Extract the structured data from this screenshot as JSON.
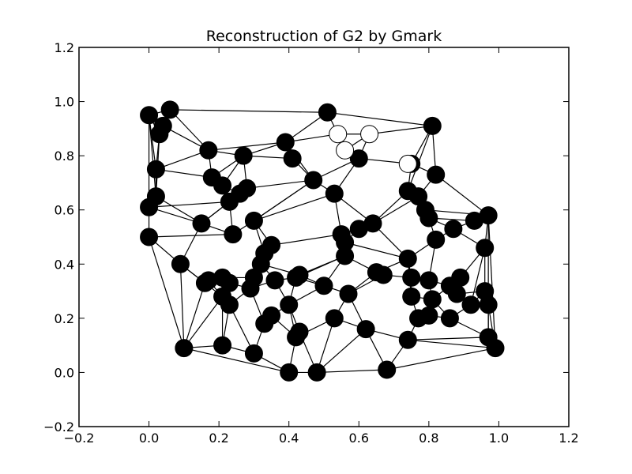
{
  "chart_data": {
    "type": "scatter",
    "title": "Reconstruction of G2 by Gmark",
    "xlabel": "",
    "ylabel": "",
    "xlim": [
      -0.2,
      1.2
    ],
    "ylim": [
      -0.2,
      1.2
    ],
    "xticks": [
      -0.2,
      0.0,
      0.2,
      0.4,
      0.6,
      0.8,
      1.0,
      1.2
    ],
    "yticks": [
      -0.2,
      0.0,
      0.2,
      0.4,
      0.6,
      0.8,
      1.0,
      1.2
    ],
    "xtick_labels": [
      "−0.2",
      "0.0",
      "0.2",
      "0.4",
      "0.6",
      "0.8",
      "1.0",
      "1.2"
    ],
    "ytick_labels": [
      "−0.2",
      "0.0",
      "0.2",
      "0.4",
      "0.6",
      "0.8",
      "1.0",
      "1.2"
    ],
    "grid": false,
    "colors": {
      "node_filled": "#000000",
      "node_hollow": "#ffffff",
      "edge": "#000000"
    },
    "nodes": [
      {
        "x": 0.0,
        "y": 0.95
      },
      {
        "x": 0.06,
        "y": 0.97
      },
      {
        "x": 0.04,
        "y": 0.91
      },
      {
        "x": 0.03,
        "y": 0.88
      },
      {
        "x": 0.51,
        "y": 0.96
      },
      {
        "x": 0.81,
        "y": 0.91
      },
      {
        "x": 0.39,
        "y": 0.85
      },
      {
        "x": 0.17,
        "y": 0.82
      },
      {
        "x": 0.27,
        "y": 0.8
      },
      {
        "x": 0.41,
        "y": 0.79
      },
      {
        "x": 0.6,
        "y": 0.79
      },
      {
        "x": 0.75,
        "y": 0.77
      },
      {
        "x": 0.02,
        "y": 0.75
      },
      {
        "x": 0.18,
        "y": 0.72
      },
      {
        "x": 0.82,
        "y": 0.73
      },
      {
        "x": 0.21,
        "y": 0.69
      },
      {
        "x": 0.47,
        "y": 0.71
      },
      {
        "x": 0.28,
        "y": 0.68
      },
      {
        "x": 0.26,
        "y": 0.66
      },
      {
        "x": 0.53,
        "y": 0.66
      },
      {
        "x": 0.74,
        "y": 0.67
      },
      {
        "x": 0.77,
        "y": 0.65
      },
      {
        "x": 0.02,
        "y": 0.65
      },
      {
        "x": 0.23,
        "y": 0.63
      },
      {
        "x": 0.0,
        "y": 0.61
      },
      {
        "x": 0.79,
        "y": 0.6
      },
      {
        "x": 0.8,
        "y": 0.57
      },
      {
        "x": 0.93,
        "y": 0.56
      },
      {
        "x": 0.97,
        "y": 0.58
      },
      {
        "x": 0.15,
        "y": 0.55
      },
      {
        "x": 0.3,
        "y": 0.56
      },
      {
        "x": 0.64,
        "y": 0.55
      },
      {
        "x": 0.6,
        "y": 0.53
      },
      {
        "x": 0.87,
        "y": 0.53
      },
      {
        "x": 0.0,
        "y": 0.5
      },
      {
        "x": 0.24,
        "y": 0.51
      },
      {
        "x": 0.55,
        "y": 0.51
      },
      {
        "x": 0.56,
        "y": 0.48
      },
      {
        "x": 0.82,
        "y": 0.49
      },
      {
        "x": 0.35,
        "y": 0.47
      },
      {
        "x": 0.33,
        "y": 0.44
      },
      {
        "x": 0.96,
        "y": 0.46
      },
      {
        "x": 0.56,
        "y": 0.43
      },
      {
        "x": 0.74,
        "y": 0.42
      },
      {
        "x": 0.32,
        "y": 0.4
      },
      {
        "x": 0.09,
        "y": 0.4
      },
      {
        "x": 0.65,
        "y": 0.37
      },
      {
        "x": 0.67,
        "y": 0.36
      },
      {
        "x": 0.75,
        "y": 0.35
      },
      {
        "x": 0.8,
        "y": 0.34
      },
      {
        "x": 0.89,
        "y": 0.35
      },
      {
        "x": 0.3,
        "y": 0.35
      },
      {
        "x": 0.21,
        "y": 0.35
      },
      {
        "x": 0.42,
        "y": 0.35
      },
      {
        "x": 0.36,
        "y": 0.34
      },
      {
        "x": 0.43,
        "y": 0.36
      },
      {
        "x": 0.17,
        "y": 0.34
      },
      {
        "x": 0.16,
        "y": 0.33
      },
      {
        "x": 0.23,
        "y": 0.33
      },
      {
        "x": 0.5,
        "y": 0.32
      },
      {
        "x": 0.86,
        "y": 0.32
      },
      {
        "x": 0.88,
        "y": 0.29
      },
      {
        "x": 0.96,
        "y": 0.3
      },
      {
        "x": 0.29,
        "y": 0.31
      },
      {
        "x": 0.57,
        "y": 0.29
      },
      {
        "x": 0.75,
        "y": 0.28
      },
      {
        "x": 0.81,
        "y": 0.27
      },
      {
        "x": 0.21,
        "y": 0.28
      },
      {
        "x": 0.23,
        "y": 0.25
      },
      {
        "x": 0.4,
        "y": 0.25
      },
      {
        "x": 0.92,
        "y": 0.25
      },
      {
        "x": 0.97,
        "y": 0.25
      },
      {
        "x": 0.35,
        "y": 0.21
      },
      {
        "x": 0.53,
        "y": 0.2
      },
      {
        "x": 0.77,
        "y": 0.2
      },
      {
        "x": 0.8,
        "y": 0.21
      },
      {
        "x": 0.86,
        "y": 0.2
      },
      {
        "x": 0.33,
        "y": 0.18
      },
      {
        "x": 0.62,
        "y": 0.16
      },
      {
        "x": 0.43,
        "y": 0.15
      },
      {
        "x": 0.42,
        "y": 0.13
      },
      {
        "x": 0.74,
        "y": 0.12
      },
      {
        "x": 0.97,
        "y": 0.13
      },
      {
        "x": 0.99,
        "y": 0.09
      },
      {
        "x": 0.1,
        "y": 0.09
      },
      {
        "x": 0.21,
        "y": 0.1
      },
      {
        "x": 0.3,
        "y": 0.07
      },
      {
        "x": 0.4,
        "y": 0.0
      },
      {
        "x": 0.48,
        "y": 0.0
      },
      {
        "x": 0.68,
        "y": 0.01
      },
      {
        "x": 0.54,
        "y": 0.88,
        "hollow": true
      },
      {
        "x": 0.63,
        "y": 0.88,
        "hollow": true
      },
      {
        "x": 0.56,
        "y": 0.82,
        "hollow": true
      },
      {
        "x": 0.74,
        "y": 0.77,
        "hollow": true
      }
    ],
    "edges": [
      [
        0,
        1
      ],
      [
        0,
        2
      ],
      [
        0,
        3
      ],
      [
        1,
        2
      ],
      [
        1,
        4
      ],
      [
        1,
        7
      ],
      [
        2,
        3
      ],
      [
        2,
        7
      ],
      [
        3,
        12
      ],
      [
        3,
        22
      ],
      [
        0,
        24
      ],
      [
        0,
        22
      ],
      [
        0,
        12
      ],
      [
        4,
        5
      ],
      [
        4,
        6
      ],
      [
        4,
        90
      ],
      [
        5,
        91
      ],
      [
        5,
        14
      ],
      [
        5,
        11
      ],
      [
        5,
        20
      ],
      [
        6,
        7
      ],
      [
        6,
        8
      ],
      [
        6,
        9
      ],
      [
        6,
        16
      ],
      [
        6,
        90
      ],
      [
        90,
        91
      ],
      [
        90,
        92
      ],
      [
        91,
        92
      ],
      [
        92,
        10
      ],
      [
        91,
        10
      ],
      [
        10,
        11
      ],
      [
        10,
        19
      ],
      [
        10,
        16
      ],
      [
        9,
        16
      ],
      [
        9,
        8
      ],
      [
        7,
        8
      ],
      [
        7,
        13
      ],
      [
        7,
        12
      ],
      [
        8,
        13
      ],
      [
        8,
        15
      ],
      [
        8,
        17
      ],
      [
        12,
        13
      ],
      [
        12,
        22
      ],
      [
        13,
        15
      ],
      [
        15,
        18
      ],
      [
        15,
        23
      ],
      [
        16,
        19
      ],
      [
        16,
        17
      ],
      [
        16,
        30
      ],
      [
        17,
        18
      ],
      [
        17,
        23
      ],
      [
        18,
        23
      ],
      [
        18,
        29
      ],
      [
        22,
        24
      ],
      [
        22,
        29
      ],
      [
        23,
        24
      ],
      [
        23,
        29
      ],
      [
        23,
        35
      ],
      [
        24,
        34
      ],
      [
        24,
        29
      ],
      [
        29,
        35
      ],
      [
        29,
        45
      ],
      [
        34,
        45
      ],
      [
        34,
        35
      ],
      [
        34,
        84
      ],
      [
        45,
        84
      ],
      [
        45,
        57
      ],
      [
        45,
        67
      ],
      [
        30,
        35
      ],
      [
        30,
        39
      ],
      [
        30,
        40
      ],
      [
        30,
        16
      ],
      [
        19,
        36
      ],
      [
        19,
        31
      ],
      [
        19,
        30
      ],
      [
        20,
        31
      ],
      [
        20,
        21
      ],
      [
        20,
        11
      ],
      [
        11,
        14
      ],
      [
        14,
        21
      ],
      [
        14,
        28
      ],
      [
        21,
        25
      ],
      [
        21,
        31
      ],
      [
        25,
        26
      ],
      [
        25,
        28
      ],
      [
        26,
        27
      ],
      [
        26,
        38
      ],
      [
        26,
        33
      ],
      [
        27,
        28
      ],
      [
        27,
        33
      ],
      [
        28,
        41
      ],
      [
        28,
        82
      ],
      [
        28,
        83
      ],
      [
        31,
        32
      ],
      [
        31,
        36
      ],
      [
        31,
        43
      ],
      [
        32,
        36
      ],
      [
        32,
        37
      ],
      [
        33,
        38
      ],
      [
        33,
        41
      ],
      [
        36,
        37
      ],
      [
        36,
        39
      ],
      [
        37,
        42
      ],
      [
        37,
        43
      ],
      [
        38,
        43
      ],
      [
        38,
        49
      ],
      [
        41,
        50
      ],
      [
        41,
        62
      ],
      [
        41,
        70
      ],
      [
        42,
        46
      ],
      [
        42,
        59
      ],
      [
        42,
        55
      ],
      [
        43,
        48
      ],
      [
        43,
        46
      ],
      [
        39,
        40
      ],
      [
        39,
        44
      ],
      [
        40,
        44
      ],
      [
        40,
        51
      ],
      [
        44,
        51
      ],
      [
        44,
        54
      ],
      [
        51,
        63
      ],
      [
        51,
        52
      ],
      [
        52,
        56
      ],
      [
        52,
        58
      ],
      [
        53,
        59
      ],
      [
        53,
        54
      ],
      [
        53,
        69
      ],
      [
        55,
        59
      ],
      [
        55,
        44
      ],
      [
        46,
        47
      ],
      [
        47,
        48
      ],
      [
        47,
        64
      ],
      [
        48,
        49
      ],
      [
        48,
        65
      ],
      [
        49,
        60
      ],
      [
        49,
        66
      ],
      [
        50,
        60
      ],
      [
        50,
        61
      ],
      [
        60,
        61
      ],
      [
        61,
        62
      ],
      [
        62,
        71
      ],
      [
        62,
        70
      ],
      [
        70,
        76
      ],
      [
        70,
        71
      ],
      [
        71,
        82
      ],
      [
        71,
        83
      ],
      [
        65,
        74
      ],
      [
        65,
        66
      ],
      [
        66,
        75
      ],
      [
        66,
        76
      ],
      [
        74,
        75
      ],
      [
        74,
        81
      ],
      [
        75,
        76
      ],
      [
        76,
        82
      ],
      [
        81,
        82
      ],
      [
        81,
        83
      ],
      [
        81,
        89
      ],
      [
        81,
        78
      ],
      [
        83,
        89
      ],
      [
        64,
        73
      ],
      [
        64,
        78
      ],
      [
        64,
        59
      ],
      [
        73,
        78
      ],
      [
        73,
        80
      ],
      [
        73,
        88
      ],
      [
        78,
        89
      ],
      [
        78,
        88
      ],
      [
        59,
        69
      ],
      [
        69,
        72
      ],
      [
        69,
        79
      ],
      [
        69,
        80
      ],
      [
        72,
        77
      ],
      [
        72,
        80
      ],
      [
        77,
        86
      ],
      [
        77,
        63
      ],
      [
        63,
        68
      ],
      [
        68,
        67
      ],
      [
        67,
        56
      ],
      [
        56,
        57
      ],
      [
        57,
        84
      ],
      [
        58,
        68
      ],
      [
        58,
        63
      ],
      [
        67,
        84
      ],
      [
        67,
        85
      ],
      [
        68,
        85
      ],
      [
        68,
        86
      ],
      [
        84,
        85
      ],
      [
        84,
        87
      ],
      [
        85,
        86
      ],
      [
        86,
        87
      ],
      [
        87,
        88
      ],
      [
        88,
        89
      ],
      [
        79,
        88
      ],
      [
        80,
        87
      ],
      [
        54,
        63
      ],
      [
        54,
        69
      ],
      [
        46,
        64
      ],
      [
        43,
        65
      ],
      [
        60,
        66
      ],
      [
        42,
        53
      ]
    ]
  }
}
